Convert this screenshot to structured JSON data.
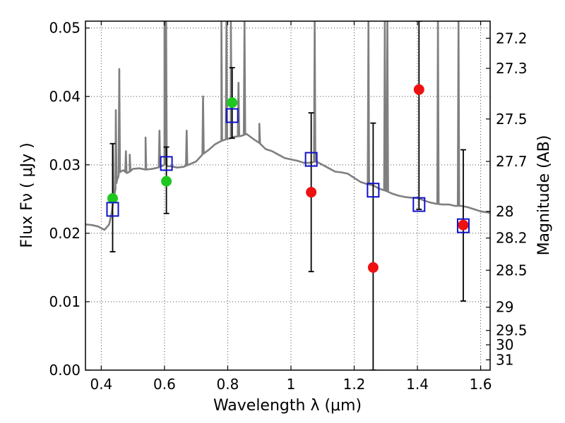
{
  "chart_data": {
    "type": "scatter",
    "title": "",
    "xlabel": "Wavelength  λ (μm)",
    "ylabel": "Flux  Fν  ( μJy )",
    "y2label": "Magnitude (AB)",
    "xlim": [
      0.35,
      1.63
    ],
    "ylim": [
      0.0,
      0.051
    ],
    "grid": true,
    "x_ticks": [
      0.4,
      0.6,
      0.8,
      1.0,
      1.2,
      1.4,
      1.6
    ],
    "x_tick_labels": [
      "0.4",
      "0.6",
      "0.8",
      "1",
      "1.2",
      "1.4",
      "1.6"
    ],
    "y_ticks": [
      0.0,
      0.01,
      0.02,
      0.03,
      0.04,
      0.05
    ],
    "y_tick_labels": [
      "0.00",
      "0.01",
      "0.02",
      "0.03",
      "0.04",
      "0.05"
    ],
    "y2_ticks": [
      {
        "label": "27.2",
        "flux": 0.0485
      },
      {
        "label": "27.3",
        "flux": 0.0441
      },
      {
        "label": "27.5",
        "flux": 0.0367
      },
      {
        "label": "27.7",
        "flux": 0.0305
      },
      {
        "label": "28",
        "flux": 0.0232
      },
      {
        "label": "28.2",
        "flux": 0.0193
      },
      {
        "label": "28.5",
        "flux": 0.0146
      },
      {
        "label": "29",
        "flux": 0.0092
      },
      {
        "label": "29.5",
        "flux": 0.0058
      },
      {
        "label": "30",
        "flux": 0.0037
      },
      {
        "label": "31",
        "flux": 0.0015
      }
    ],
    "colors": {
      "model": "#7f7f7f",
      "detected": "#1ec81e",
      "upper": "#ee1111",
      "model_phot": "#1010cc",
      "errorbar": "#000000"
    },
    "series": [
      {
        "kind": "line",
        "color": "#7f7f7f",
        "x": [
          0.35,
          0.37,
          0.39,
          0.41,
          0.425,
          0.433,
          0.437,
          0.44,
          0.445,
          0.45,
          0.46,
          0.47,
          0.48,
          0.49,
          0.5,
          0.52,
          0.54,
          0.56,
          0.58,
          0.6,
          0.605,
          0.61,
          0.62,
          0.64,
          0.66,
          0.68,
          0.7,
          0.72,
          0.74,
          0.76,
          0.78,
          0.8,
          0.81,
          0.82,
          0.84,
          0.86,
          0.88,
          0.9,
          0.92,
          0.94,
          0.96,
          0.98,
          1.0,
          1.02,
          1.04,
          1.06,
          1.08,
          1.1,
          1.12,
          1.14,
          1.16,
          1.18,
          1.2,
          1.22,
          1.24,
          1.26,
          1.28,
          1.3,
          1.32,
          1.34,
          1.36,
          1.38,
          1.4,
          1.42,
          1.44,
          1.46,
          1.48,
          1.5,
          1.52,
          1.54,
          1.56,
          1.58,
          1.6,
          1.63
        ],
        "y": [
          0.0213,
          0.0212,
          0.021,
          0.0205,
          0.0213,
          0.023,
          0.0245,
          0.0252,
          0.0265,
          0.0278,
          0.029,
          0.0292,
          0.0288,
          0.029,
          0.0294,
          0.0295,
          0.0293,
          0.0294,
          0.0296,
          0.03,
          0.0302,
          0.0298,
          0.0298,
          0.0296,
          0.0297,
          0.0301,
          0.0305,
          0.0315,
          0.0322,
          0.033,
          0.0335,
          0.0338,
          0.0339,
          0.0341,
          0.0342,
          0.0345,
          0.0338,
          0.0332,
          0.0323,
          0.032,
          0.0315,
          0.031,
          0.0308,
          0.0306,
          0.0303,
          0.0303,
          0.0305,
          0.03,
          0.0295,
          0.029,
          0.0289,
          0.0287,
          0.0281,
          0.0275,
          0.0272,
          0.027,
          0.0265,
          0.0262,
          0.0258,
          0.0255,
          0.0253,
          0.0252,
          0.0252,
          0.0248,
          0.0245,
          0.0243,
          0.0242,
          0.0242,
          0.024,
          0.024,
          0.0238,
          0.0235,
          0.0232,
          0.023
        ],
        "emission_lines": [
          {
            "x": 0.437,
            "peak": 0.033
          },
          {
            "x": 0.446,
            "peak": 0.038
          },
          {
            "x": 0.457,
            "peak": 0.044
          },
          {
            "x": 0.478,
            "peak": 0.032
          },
          {
            "x": 0.49,
            "peak": 0.0315
          },
          {
            "x": 0.54,
            "peak": 0.034
          },
          {
            "x": 0.584,
            "peak": 0.035
          },
          {
            "x": 0.6,
            "peak": 0.051
          },
          {
            "x": 0.605,
            "peak": 0.051
          },
          {
            "x": 0.67,
            "peak": 0.035
          },
          {
            "x": 0.722,
            "peak": 0.04
          },
          {
            "x": 0.78,
            "peak": 0.051
          },
          {
            "x": 0.796,
            "peak": 0.051
          },
          {
            "x": 0.81,
            "peak": 0.051
          },
          {
            "x": 0.834,
            "peak": 0.042
          },
          {
            "x": 0.853,
            "peak": 0.051
          },
          {
            "x": 0.9,
            "peak": 0.036
          },
          {
            "x": 1.075,
            "peak": 0.051
          },
          {
            "x": 1.245,
            "peak": 0.051
          },
          {
            "x": 1.297,
            "peak": 0.051
          },
          {
            "x": 1.305,
            "peak": 0.051
          },
          {
            "x": 1.465,
            "peak": 0.051
          },
          {
            "x": 1.53,
            "peak": 0.051
          }
        ]
      },
      {
        "kind": "errorbar",
        "color": "#000000",
        "points": [
          {
            "x": 0.436,
            "lo": 0.0173,
            "hi": 0.0331
          },
          {
            "x": 0.606,
            "lo": 0.0229,
            "hi": 0.0326
          },
          {
            "x": 0.814,
            "lo": 0.0339,
            "hi": 0.0442
          },
          {
            "x": 1.064,
            "lo": 0.0144,
            "hi": 0.0376
          },
          {
            "x": 1.26,
            "lo": 0.0,
            "hi": 0.0361
          },
          {
            "x": 1.405,
            "lo": 0.0235,
            "hi": 0.051
          },
          {
            "x": 1.545,
            "lo": 0.0101,
            "hi": 0.0322
          }
        ]
      },
      {
        "kind": "scatter",
        "marker": "circle",
        "color": "#1ec81e",
        "x": [
          0.436,
          0.606,
          0.814
        ],
        "y": [
          0.0251,
          0.0276,
          0.0391
        ]
      },
      {
        "kind": "scatter",
        "marker": "circle",
        "color": "#ee1111",
        "x": [
          1.064,
          1.26,
          1.405,
          1.545
        ],
        "y": [
          0.026,
          0.015,
          0.041,
          0.0212
        ]
      },
      {
        "kind": "scatter",
        "marker": "square",
        "color": "#1010cc",
        "x": [
          0.436,
          0.606,
          0.814,
          1.064,
          1.26,
          1.405,
          1.545
        ],
        "y": [
          0.0235,
          0.0302,
          0.0372,
          0.0308,
          0.0263,
          0.0242,
          0.0211
        ]
      }
    ]
  }
}
